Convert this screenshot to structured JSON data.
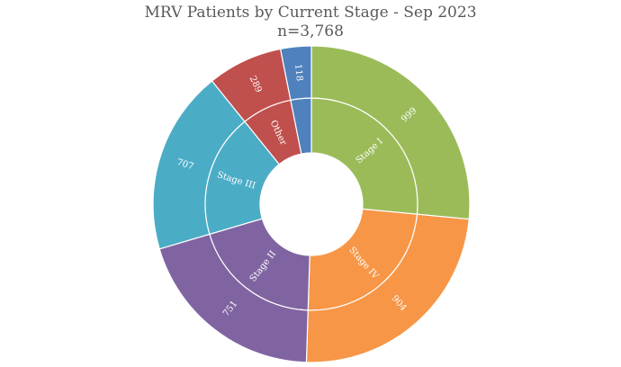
{
  "chart_data": {
    "type": "sunburst",
    "title": "MRV Patients by Current Stage - Sep 2023",
    "subtitle": "n=3,768",
    "inner_ring": [
      {
        "label": "Stage I",
        "value": 999,
        "color": "#9BBB59"
      },
      {
        "label": "Stage IV",
        "value": 904,
        "color": "#F79646"
      },
      {
        "label": "Stage II",
        "value": 751,
        "color": "#8064A2"
      },
      {
        "label": "Stage III",
        "value": 707,
        "color": "#4BACC6"
      },
      {
        "label": "Other",
        "value": 289,
        "color": "#C0504D"
      },
      {
        "label": "",
        "value": 118,
        "color": "#4F81BD"
      }
    ],
    "outer_ring": [
      {
        "label": "999",
        "value": 999,
        "color": "#9BBB59"
      },
      {
        "label": "904",
        "value": 904,
        "color": "#F79646"
      },
      {
        "label": "751",
        "value": 751,
        "color": "#8064A2"
      },
      {
        "label": "707",
        "value": 707,
        "color": "#4BACC6"
      },
      {
        "label": "289",
        "value": 289,
        "color": "#C0504D"
      },
      {
        "label": "118",
        "value": 118,
        "color": "#4F81BD"
      }
    ]
  }
}
